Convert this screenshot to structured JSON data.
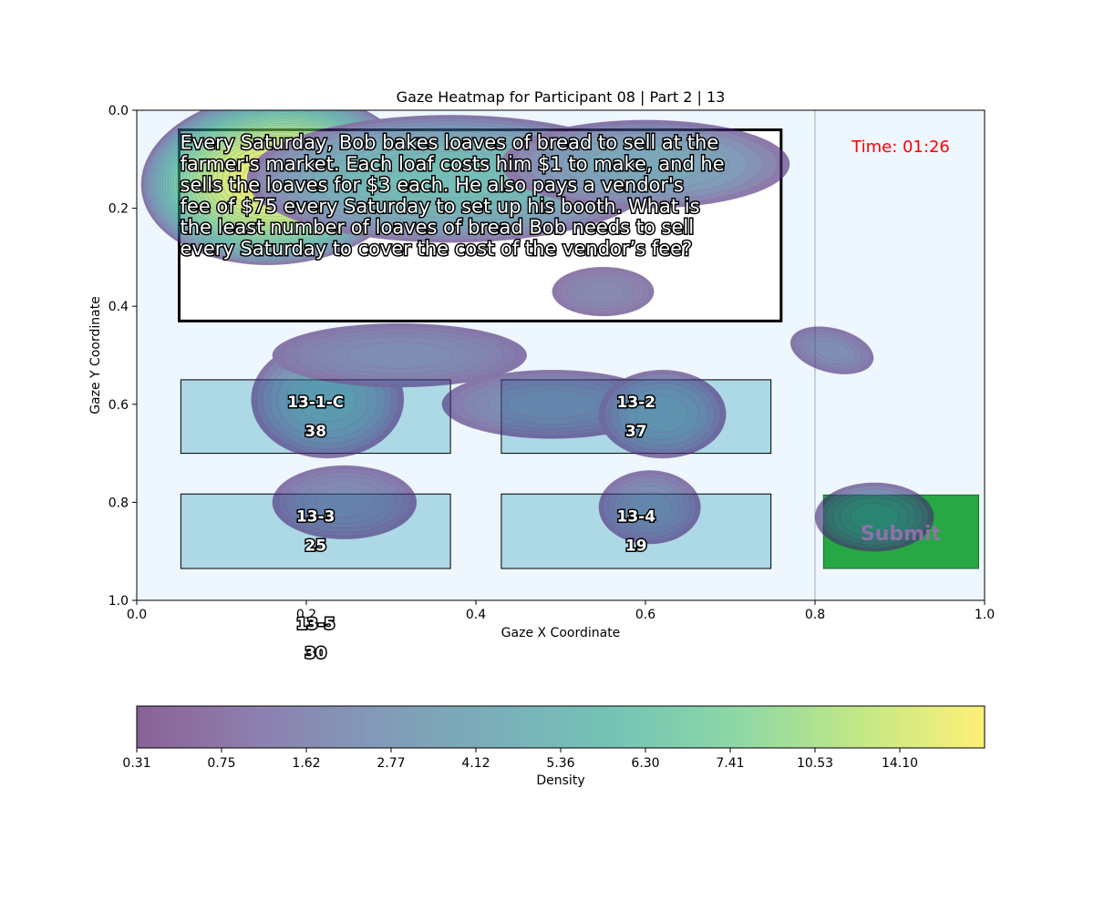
{
  "chart_data": {
    "type": "heatmap",
    "title": "Gaze Heatmap for Participant 08 | Part 2 | 13",
    "xlabel": "Gaze X Coordinate",
    "ylabel": "Gaze Y Coordinate",
    "xlim": [
      0.0,
      1.0
    ],
    "ylim": [
      1.0,
      0.0
    ],
    "y_axis_inverted": true,
    "x_ticks": [
      "0.0",
      "0.2",
      "0.4",
      "0.6",
      "0.8",
      "1.0"
    ],
    "y_ticks": [
      "0.0",
      "0.2",
      "0.4",
      "0.6",
      "0.8",
      "1.0"
    ],
    "colormap": "viridis",
    "colorbar_label": "Density",
    "colorbar_ticks": [
      "0.31",
      "0.75",
      "1.62",
      "2.77",
      "4.12",
      "5.36",
      "6.30",
      "7.41",
      "10.53",
      "14.10"
    ],
    "colorbar_levels": 20,
    "question_text": [
      "Every Saturday, Bob bakes loaves of bread to sell at the",
      "farmer's market. Each loaf costs him $1 to make, and he",
      "sells the loaves for $3 each. He also pays a vendor's",
      "fee of $75 every Saturday to set up his booth. What is",
      "the least number of loaves of bread Bob needs to sell",
      "every Saturday to cover the cost of the vendor’s fee?"
    ],
    "question_box": {
      "x0": 0.05,
      "y0": 0.04,
      "x1": 0.76,
      "y1": 0.43
    },
    "timer": "Time: 01:26",
    "submit_label": "Submit",
    "submit_box": {
      "x0": 0.81,
      "y0": 0.785,
      "x1": 0.993,
      "y1": 0.935
    },
    "divider_x": 0.8,
    "aois": [
      {
        "id": "13-1-C",
        "count": "38",
        "x0": 0.052,
        "y0": 0.55,
        "x1": 0.37,
        "y1": 0.7
      },
      {
        "id": "13-2",
        "count": "37",
        "x0": 0.43,
        "y0": 0.55,
        "x1": 0.748,
        "y1": 0.7
      },
      {
        "id": "13-3",
        "count": "25",
        "x0": 0.052,
        "y0": 0.783,
        "x1": 0.37,
        "y1": 0.935
      },
      {
        "id": "13-4",
        "count": "19",
        "x0": 0.43,
        "y0": 0.783,
        "x1": 0.748,
        "y1": 0.935
      },
      {
        "id": "13-5",
        "count": "30",
        "x0": 0.052,
        "y0": 1.003,
        "x1": 0.37,
        "y1": 1.16,
        "offscreen": true
      }
    ],
    "density_clusters": [
      {
        "cx": 0.165,
        "cy": 0.14,
        "rx": 0.16,
        "ry": 0.175,
        "peak": 14.5,
        "rot": -4
      },
      {
        "cx": 0.37,
        "cy": 0.14,
        "rx": 0.24,
        "ry": 0.13,
        "peak": 5.0,
        "rot": 0
      },
      {
        "cx": 0.6,
        "cy": 0.11,
        "rx": 0.17,
        "ry": 0.09,
        "peak": 3.0,
        "rot": 0
      },
      {
        "cx": 0.55,
        "cy": 0.37,
        "rx": 0.06,
        "ry": 0.05,
        "peak": 0.9,
        "rot": 0
      },
      {
        "cx": 0.225,
        "cy": 0.59,
        "rx": 0.09,
        "ry": 0.12,
        "peak": 3.2,
        "rot": 0
      },
      {
        "cx": 0.31,
        "cy": 0.5,
        "rx": 0.15,
        "ry": 0.065,
        "peak": 1.2,
        "rot": 0
      },
      {
        "cx": 0.245,
        "cy": 0.8,
        "rx": 0.085,
        "ry": 0.075,
        "peak": 1.3,
        "rot": 0
      },
      {
        "cx": 0.49,
        "cy": 0.6,
        "rx": 0.13,
        "ry": 0.07,
        "peak": 1.5,
        "rot": 0
      },
      {
        "cx": 0.62,
        "cy": 0.62,
        "rx": 0.075,
        "ry": 0.09,
        "peak": 2.4,
        "rot": 0
      },
      {
        "cx": 0.605,
        "cy": 0.81,
        "rx": 0.06,
        "ry": 0.075,
        "peak": 1.5,
        "rot": 0
      },
      {
        "cx": 0.82,
        "cy": 0.49,
        "rx": 0.05,
        "ry": 0.045,
        "peak": 1.3,
        "rot": 14
      },
      {
        "cx": 0.87,
        "cy": 0.83,
        "rx": 0.07,
        "ry": 0.07,
        "peak": 2.8,
        "rot": 0
      }
    ]
  }
}
